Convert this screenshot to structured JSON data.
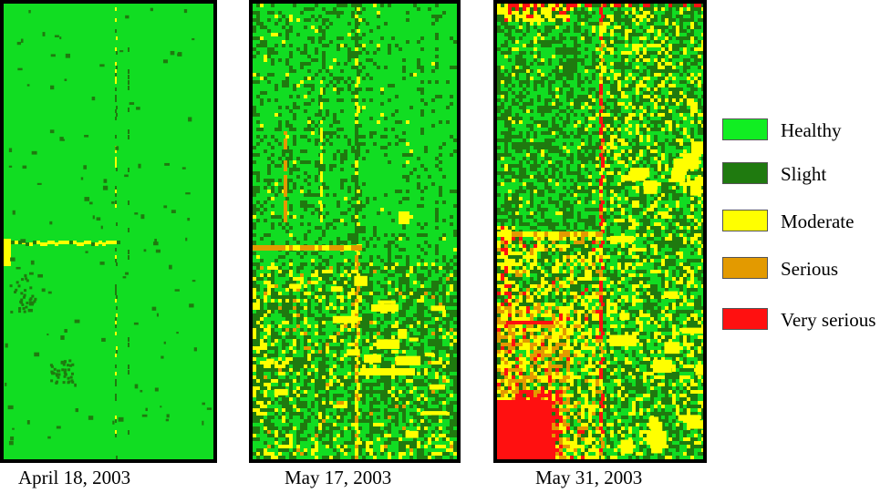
{
  "panels": [
    {
      "caption": "April 18, 2003",
      "cls": "p1"
    },
    {
      "caption": "May 17, 2003",
      "cls": "p2"
    },
    {
      "caption": "May 31, 2003",
      "cls": "p3"
    }
  ],
  "legend": [
    {
      "label": "Healthy",
      "color": "#11ee22"
    },
    {
      "label": "Slight",
      "color": "#1f7a0f"
    },
    {
      "label": "Moderate",
      "color": "#ffff00"
    },
    {
      "label": "Serious",
      "color": "#e39a00"
    },
    {
      "label": "Very serious",
      "color": "#ff1010"
    }
  ],
  "colors": {
    "healthy": "#11dd22",
    "slight": "#1f7a0f",
    "moderate": "#ffff00",
    "serious": "#e39a00",
    "very_serious": "#ff1010",
    "frame": "#000000"
  }
}
